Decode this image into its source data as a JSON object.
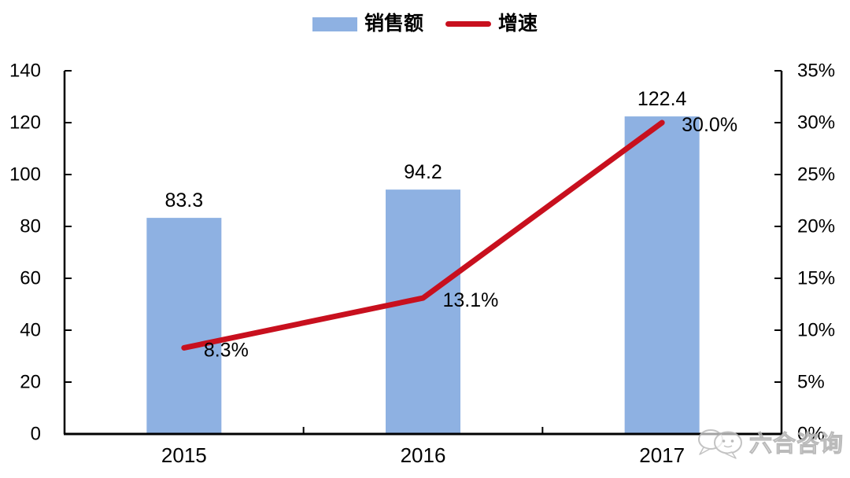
{
  "watermark": {
    "text": "六合咨询"
  },
  "chart_data": {
    "type": "combo",
    "categories": [
      "2015",
      "2016",
      "2017"
    ],
    "series": [
      {
        "name": "销售额",
        "type": "bar",
        "axis": "left",
        "values": [
          83.3,
          94.2,
          122.4
        ],
        "labels": [
          "83.3",
          "94.2",
          "122.4"
        ],
        "color": "#8EB1E2"
      },
      {
        "name": "增速",
        "type": "line",
        "axis": "right",
        "values": [
          8.3,
          13.1,
          30.0
        ],
        "labels": [
          "8.3%",
          "13.1%",
          "30.0%"
        ],
        "color": "#C8101E"
      }
    ],
    "left_axis": {
      "min": 0,
      "max": 140,
      "tick_labels": [
        "0",
        "20",
        "40",
        "60",
        "80",
        "100",
        "120",
        "140"
      ]
    },
    "right_axis": {
      "min": 0,
      "max": 35,
      "tick_labels": [
        "0%",
        "5%",
        "10%",
        "15%",
        "20%",
        "25%",
        "30%",
        "35%"
      ]
    },
    "grid": false,
    "legend_position": "top",
    "axis_color": "#000000"
  }
}
